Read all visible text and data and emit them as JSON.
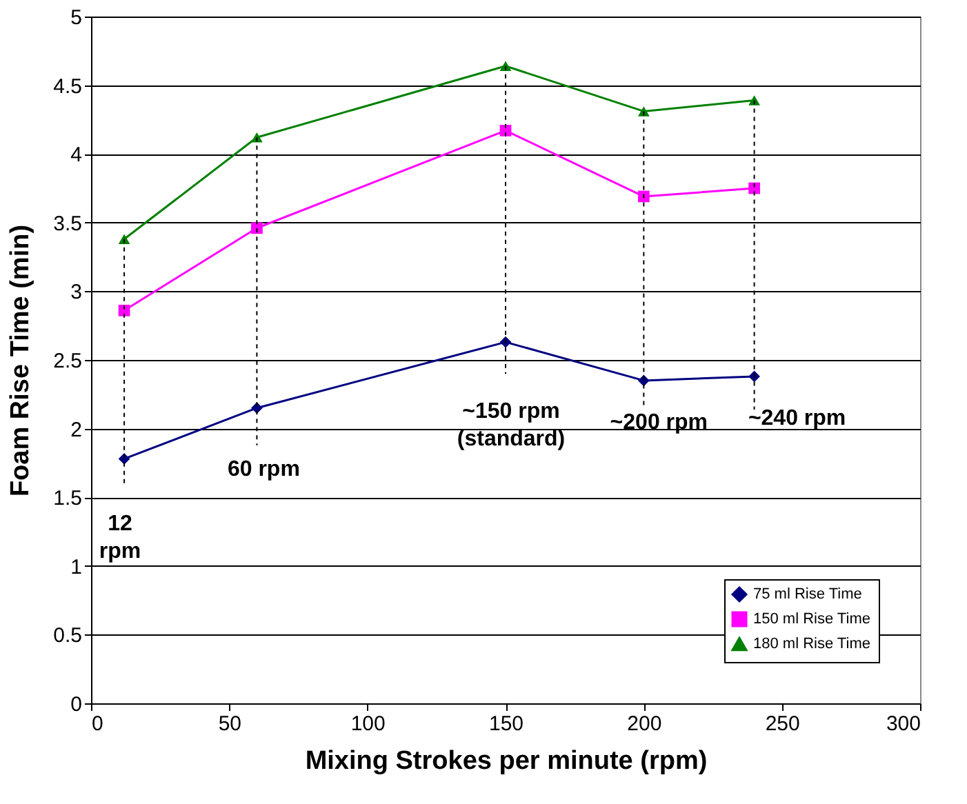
{
  "chart_data": {
    "type": "line",
    "xlabel": "Mixing Strokes per minute (rpm)",
    "ylabel": "Foam Rise Time (min)",
    "x": [
      12,
      60,
      150,
      200,
      240
    ],
    "series": [
      {
        "name": "75 ml Rise Time",
        "color": "#000080",
        "marker": "diamond",
        "values": [
          1.78,
          2.15,
          2.63,
          2.35,
          2.38
        ]
      },
      {
        "name": "150 ml Rise Time",
        "color": "#ff00ff",
        "marker": "square",
        "values": [
          2.86,
          3.46,
          4.17,
          3.69,
          3.75
        ]
      },
      {
        "name": "180 ml Rise Time",
        "color": "#008000",
        "marker": "triangle",
        "values": [
          3.38,
          4.12,
          4.64,
          4.31,
          4.39
        ]
      }
    ],
    "ref_lines": [
      {
        "axis": "x",
        "value": 12,
        "label": "12\nrpm",
        "line_style": "dashed",
        "color": "#000000"
      },
      {
        "axis": "x",
        "value": 60,
        "label": "60 rpm",
        "line_style": "dashed",
        "color": "#000000"
      },
      {
        "axis": "x",
        "value": 150,
        "label": "~150 rpm\n(standard)",
        "line_style": "dashed",
        "color": "#000000"
      },
      {
        "axis": "x",
        "value": 200,
        "label": "~200 rpm",
        "line_style": "dashed",
        "color": "#000000"
      },
      {
        "axis": "x",
        "value": 240,
        "label": "~240 rpm",
        "line_style": "dashed",
        "color": "#000000"
      }
    ],
    "xlim": [
      0,
      300
    ],
    "xticks": [
      0,
      50,
      100,
      150,
      200,
      250,
      300
    ],
    "ylim": [
      0,
      5
    ],
    "yticks": [
      0,
      0.5,
      1,
      1.5,
      2,
      2.5,
      3,
      3.5,
      4,
      4.5,
      5
    ],
    "grid": "y",
    "legend": "bottom right",
    "line_style": "solid"
  }
}
